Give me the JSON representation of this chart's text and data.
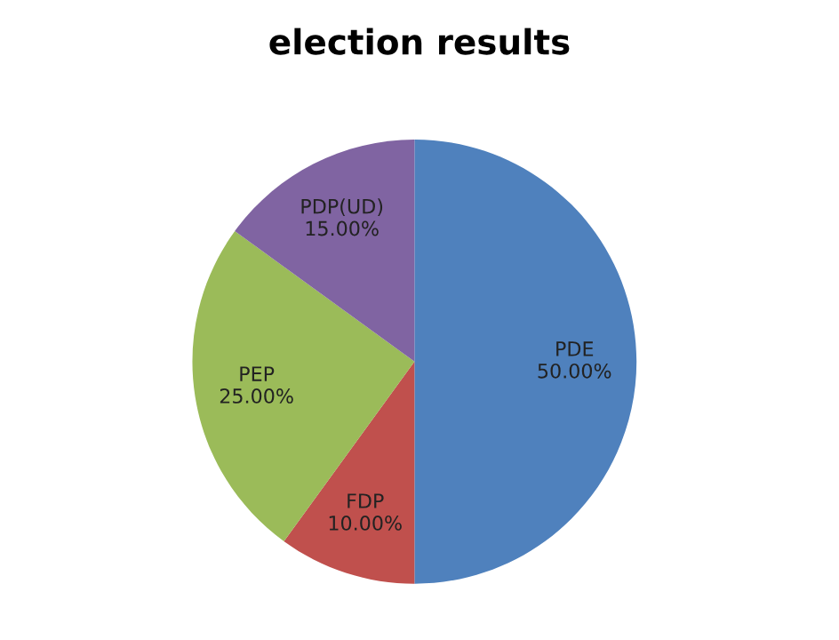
{
  "chart_data": {
    "type": "pie",
    "title": "election results",
    "categories": [
      "PDE",
      "FDP",
      "PEP",
      "PDP(UD)"
    ],
    "values": [
      50,
      10,
      25,
      15
    ],
    "value_labels": [
      "50.00%",
      "10.00%",
      "25.00%",
      "15.00%"
    ],
    "colors": [
      "#4f81bd",
      "#c0504d",
      "#9bbb59",
      "#8064a2"
    ],
    "legend": false
  }
}
